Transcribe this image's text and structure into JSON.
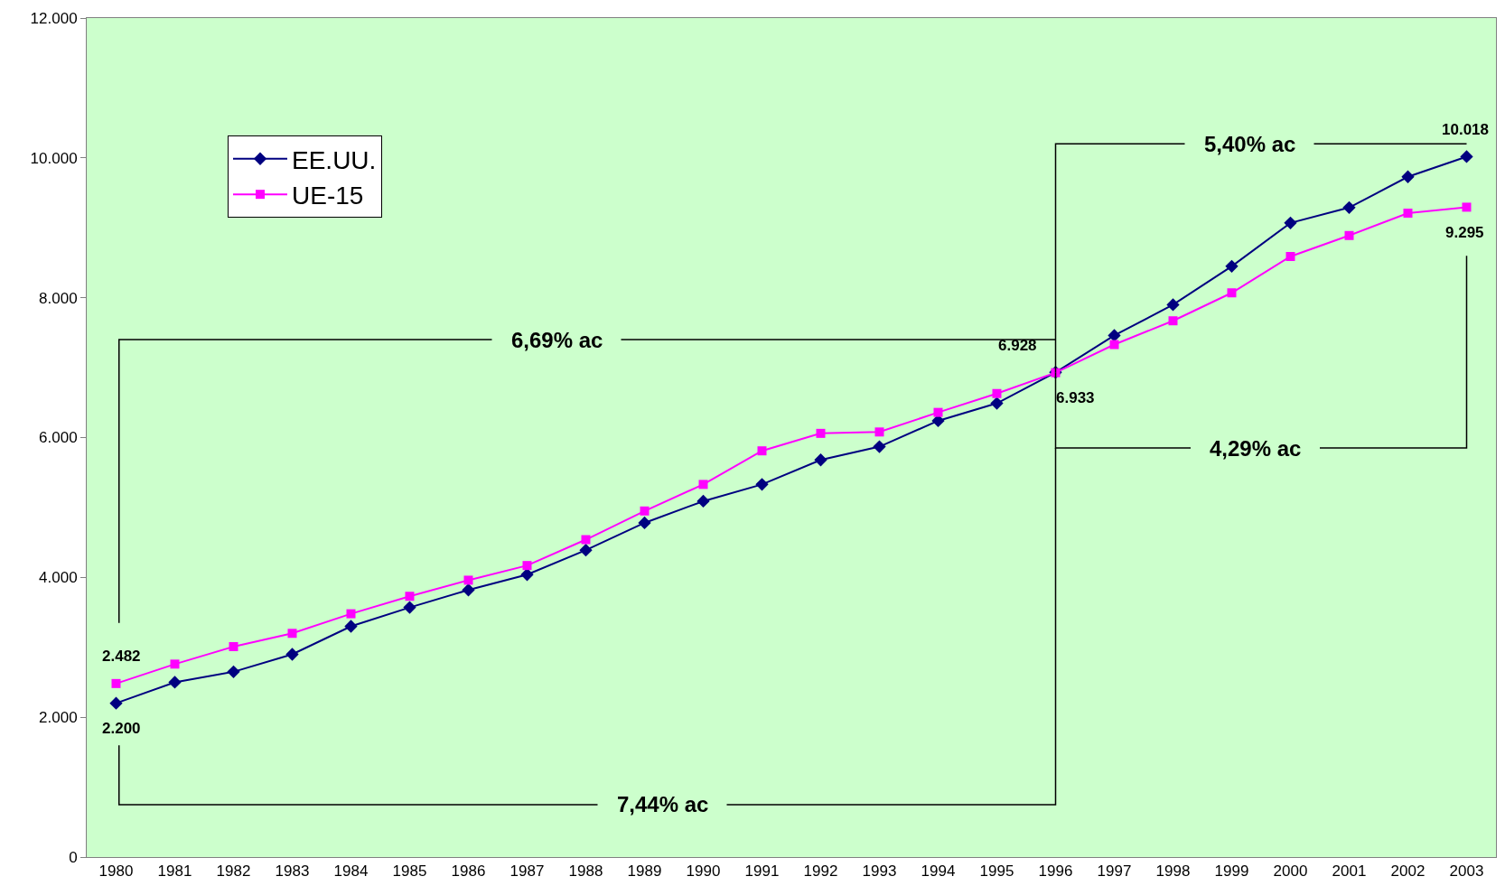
{
  "chart_data": {
    "type": "line",
    "categories": [
      "1980",
      "1981",
      "1982",
      "1983",
      "1984",
      "1985",
      "1986",
      "1987",
      "1988",
      "1989",
      "1990",
      "1991",
      "1992",
      "1993",
      "1994",
      "1995",
      "1996",
      "1997",
      "1998",
      "1999",
      "2000",
      "2001",
      "2002",
      "2003"
    ],
    "series": [
      {
        "name": "EE.UU.",
        "color": "#000080",
        "marker": "diamond",
        "values": [
          2200,
          2500,
          2650,
          2900,
          3300,
          3570,
          3820,
          4040,
          4390,
          4780,
          5090,
          5330,
          5680,
          5870,
          6240,
          6490,
          6933,
          7460,
          7900,
          8450,
          9070,
          9290,
          9730,
          10018
        ],
        "value_labels": [
          "2.200",
          null,
          null,
          null,
          null,
          null,
          null,
          null,
          null,
          null,
          null,
          null,
          null,
          null,
          null,
          null,
          "6.933",
          null,
          null,
          null,
          null,
          null,
          null,
          "10.018"
        ]
      },
      {
        "name": "UE-15",
        "color": "#ff00ff",
        "marker": "square",
        "values": [
          2482,
          2760,
          3010,
          3200,
          3480,
          3730,
          3960,
          4170,
          4540,
          4950,
          5330,
          5810,
          6060,
          6080,
          6360,
          6630,
          6928,
          7330,
          7670,
          8070,
          8590,
          8890,
          9210,
          9295
        ],
        "value_labels": [
          "2.482",
          null,
          null,
          null,
          null,
          null,
          null,
          null,
          null,
          null,
          null,
          null,
          null,
          null,
          null,
          null,
          "6.928",
          null,
          null,
          null,
          null,
          null,
          null,
          "9.295"
        ]
      }
    ],
    "ylim": [
      0,
      12000
    ],
    "yticks": [
      {
        "value": 0,
        "label": "0"
      },
      {
        "value": 2000,
        "label": "2.000"
      },
      {
        "value": 4000,
        "label": "4.000"
      },
      {
        "value": 6000,
        "label": "6.000"
      },
      {
        "value": 8000,
        "label": "8.000"
      },
      {
        "value": 10000,
        "label": "10.000"
      },
      {
        "value": 12000,
        "label": "12.000"
      }
    ],
    "grid": false,
    "legend": "top left",
    "line_style": "solid",
    "annotations": [
      "6,69% ac",
      "7,44% ac",
      {
        "text": "5,40% ac",
        "x": "1996",
        "y": 6933
      },
      {
        "text": "4,29% ac",
        "x": "1996",
        "y": 6933
      }
    ]
  }
}
